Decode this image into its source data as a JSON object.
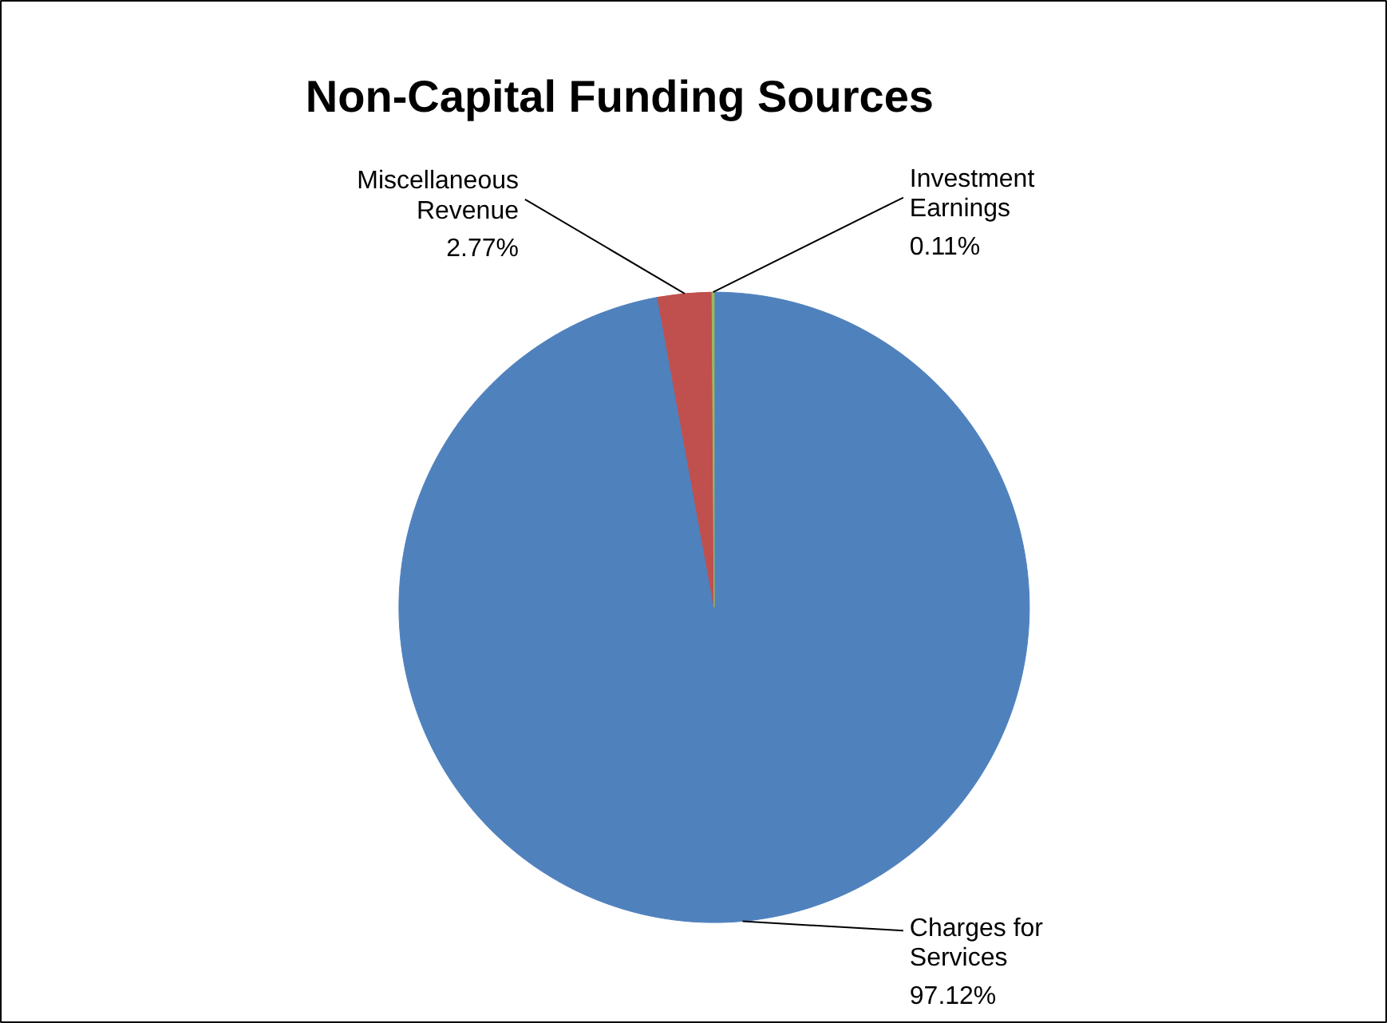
{
  "chart_data": {
    "type": "pie",
    "title": "Non-Capital Funding Sources",
    "categories": [
      "Charges for\nServices",
      "Miscellaneous\nRevenue",
      "Investment\nEarnings"
    ],
    "values": [
      97.12,
      2.77,
      0.11
    ],
    "colors": [
      "#4f81bd",
      "#c0504d",
      "#9bbb59"
    ],
    "value_labels": [
      "97.12%",
      "2.77%",
      "0.11%"
    ]
  }
}
